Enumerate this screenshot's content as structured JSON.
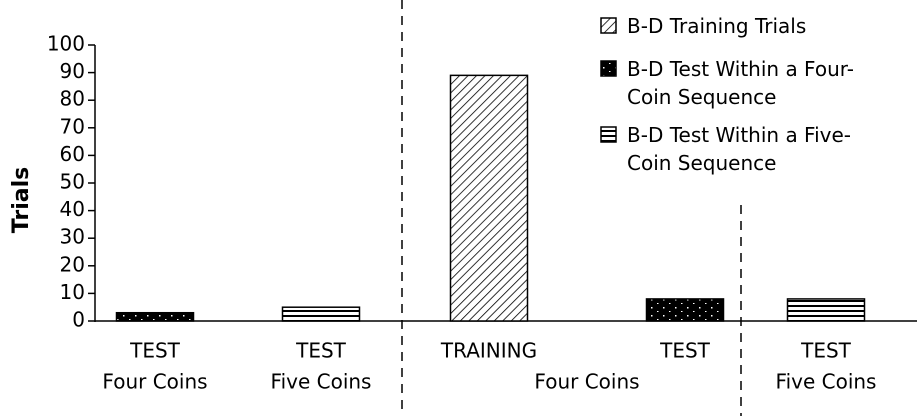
{
  "chart_data": {
    "type": "bar",
    "y_label": "Trials",
    "categories": [
      "TEST",
      "TEST",
      "TRAINING",
      "TEST",
      "TEST"
    ],
    "groups": [
      {
        "label": "Four Coins",
        "categories": [
          0
        ]
      },
      {
        "label": "Five Coins",
        "categories": [
          1
        ]
      },
      {
        "label": "Four Coins",
        "categories": [
          2,
          3
        ]
      },
      {
        "label": "Five Coins",
        "categories": [
          4
        ]
      }
    ],
    "series": [
      {
        "name": "B-D Training Trials",
        "color": "#000000",
        "pattern": "diagonal",
        "values": [
          null,
          null,
          89,
          null,
          null
        ]
      },
      {
        "name": "B-D Test Within a Four-Coin Sequence",
        "color": "#000000",
        "pattern": "dotted",
        "values": [
          3,
          null,
          null,
          8,
          null
        ]
      },
      {
        "name": "B-D Test Within a Five-Coin Sequence",
        "color": "#000000",
        "pattern": "horizontal",
        "values": [
          null,
          5,
          null,
          null,
          8
        ]
      }
    ],
    "ylim": [
      0,
      100
    ],
    "yticks": [
      0,
      10,
      20,
      30,
      40,
      50,
      60,
      70,
      80,
      90,
      100
    ],
    "grid": false
  }
}
